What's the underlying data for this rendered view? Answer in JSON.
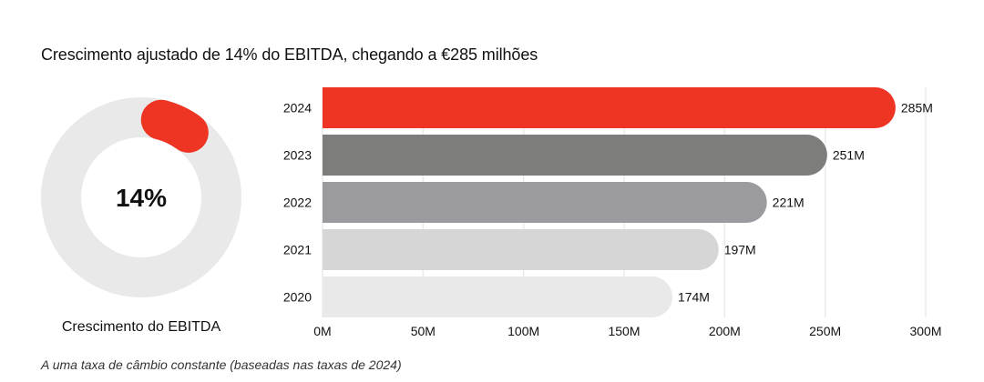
{
  "title": "Crescimento ajustado de 14% do EBITDA, chegando a €285 milhões",
  "footnote": "A uma taxa de câmbio constante (baseadas nas taxas de 2024)",
  "chart_data": [
    {
      "type": "pie",
      "subtype": "donut",
      "center_label": "14%",
      "caption": "Crescimento do EBITDA",
      "value_percent": 14,
      "colors": {
        "value": "#ee3524",
        "track": "#e8e9e8"
      }
    },
    {
      "type": "bar",
      "orientation": "horizontal",
      "categories": [
        "2024",
        "2023",
        "2022",
        "2021",
        "2020"
      ],
      "values": [
        285,
        251,
        221,
        197,
        174
      ],
      "value_labels": [
        "285M",
        "251M",
        "221M",
        "197M",
        "174M"
      ],
      "colors": [
        "#ee3524",
        "#7d7e7c",
        "#9b9a9f",
        "#d6d6d6",
        "#e8e9e8"
      ],
      "xlim": [
        0,
        300
      ],
      "xticks": [
        0,
        50,
        100,
        150,
        200,
        250,
        300
      ],
      "xtick_labels": [
        "0M",
        "50M",
        "100M",
        "150M",
        "200M",
        "250M",
        "300M"
      ],
      "xlabel": "",
      "ylabel": "",
      "grid": "vertical",
      "grid_color": "#ebebeb"
    }
  ]
}
